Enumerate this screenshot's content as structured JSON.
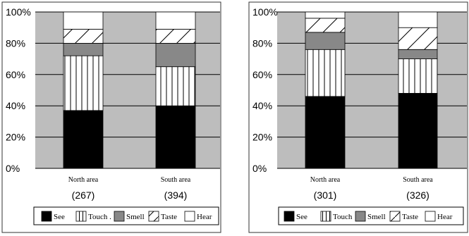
{
  "chart_data": [
    {
      "type": "bar",
      "stacked": true,
      "categories": [
        "North area",
        "South area"
      ],
      "sample_sizes": [
        "(267)",
        "(394)"
      ],
      "yticks": [
        "0%",
        "20%",
        "40%",
        "60%",
        "80%",
        "100%"
      ],
      "ylim": [
        0,
        100
      ],
      "grid": true,
      "series": [
        {
          "name": "See",
          "values": [
            37,
            40
          ]
        },
        {
          "name": "Touch",
          "values": [
            35,
            25
          ]
        },
        {
          "name": "Smell",
          "values": [
            8,
            15
          ]
        },
        {
          "name": "Taste",
          "values": [
            9,
            9
          ]
        },
        {
          "name": "Hear",
          "values": [
            11,
            11
          ]
        }
      ],
      "legend_labels": [
        "See",
        "Touch .",
        "Smell",
        "Taste",
        "Hear"
      ],
      "legend": "bottom"
    },
    {
      "type": "bar",
      "stacked": true,
      "categories": [
        "North area",
        "South area"
      ],
      "sample_sizes": [
        "(301)",
        "(326)"
      ],
      "yticks": [
        "0%",
        "20%",
        "40%",
        "60%",
        "80%",
        "100%"
      ],
      "ylim": [
        0,
        100
      ],
      "grid": true,
      "series": [
        {
          "name": "See",
          "values": [
            46,
            48
          ]
        },
        {
          "name": "Touch",
          "values": [
            30,
            22
          ]
        },
        {
          "name": "Smell",
          "values": [
            11,
            6
          ]
        },
        {
          "name": "Taste",
          "values": [
            9,
            14
          ]
        },
        {
          "name": "Hear",
          "values": [
            4,
            10
          ]
        }
      ],
      "legend_labels": [
        "See",
        "Touch",
        "Smell",
        "Taste",
        "Hear"
      ],
      "legend": "bottom"
    }
  ],
  "style": {
    "plot_background": "#bdbdbd",
    "series_fills": {
      "See": "#000000",
      "Touch": "#ffffff",
      "Smell": "#888888",
      "Taste": "#ffffff",
      "Hear": "#ffffff"
    },
    "series_patterns": {
      "See": "solid",
      "Touch": "vertical-lines",
      "Smell": "solid",
      "Taste": "diagonal-lines",
      "Hear": "solid"
    }
  }
}
